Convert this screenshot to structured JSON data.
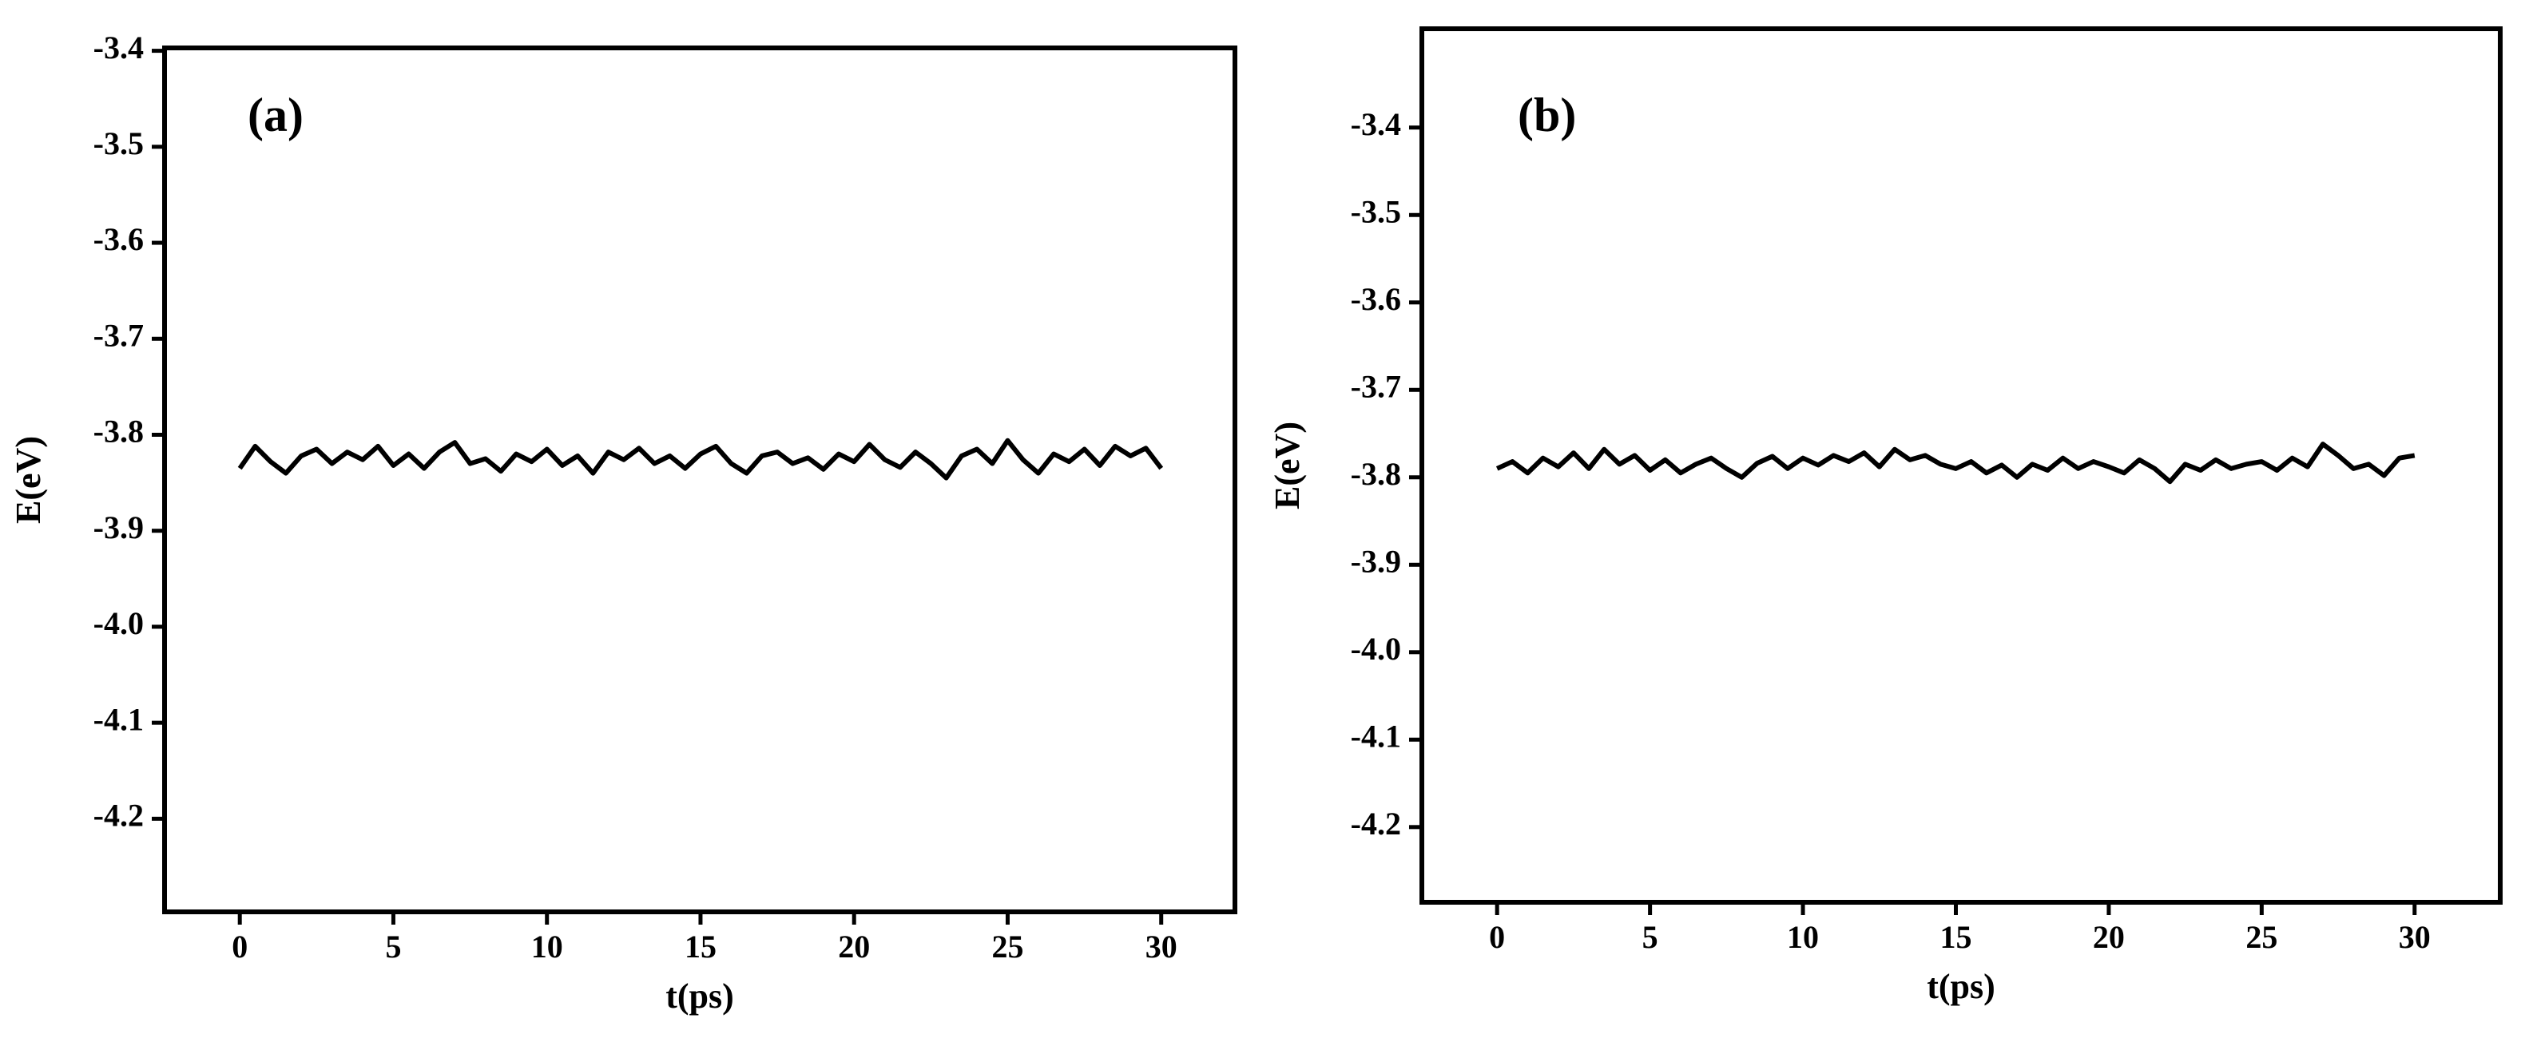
{
  "chart_data": [
    {
      "type": "line",
      "annotation": "(a)",
      "x_label": "t(ps)",
      "y_label": "E(eV)",
      "xlim": [
        -2.45,
        32.4
      ],
      "ylim": [
        -4.297,
        -3.397
      ],
      "xticks": [
        0,
        5,
        10,
        15,
        20,
        25,
        30
      ],
      "yticks": [
        -3.4,
        -3.5,
        -3.6,
        -3.7,
        -3.8,
        -3.9,
        {
          "value": -4.0,
          "label": "-4.0"
        },
        -4.1,
        -4.2
      ],
      "x": [
        0,
        0.5,
        1,
        1.5,
        2,
        2.5,
        3,
        3.5,
        4,
        4.5,
        5,
        5.5,
        6,
        6.5,
        7,
        7.5,
        8,
        8.5,
        9,
        9.5,
        10,
        10.5,
        11,
        11.5,
        12,
        12.5,
        13,
        13.5,
        14,
        14.5,
        15,
        15.5,
        16,
        16.5,
        17,
        17.5,
        18,
        18.5,
        19,
        19.5,
        20,
        20.5,
        21,
        21.5,
        22,
        22.5,
        23,
        23.5,
        24,
        24.5,
        25,
        25.5,
        26,
        26.5,
        27,
        27.5,
        28,
        28.5,
        29,
        29.5,
        30
      ],
      "series": [
        {
          "color": "#000000",
          "values": [
            -3.835,
            -3.812,
            -3.828,
            -3.84,
            -3.822,
            -3.815,
            -3.83,
            -3.818,
            -3.826,
            -3.812,
            -3.832,
            -3.82,
            -3.835,
            -3.818,
            -3.808,
            -3.83,
            -3.825,
            -3.838,
            -3.82,
            -3.828,
            -3.815,
            -3.832,
            -3.822,
            -3.84,
            -3.818,
            -3.826,
            -3.814,
            -3.83,
            -3.822,
            -3.835,
            -3.82,
            -3.812,
            -3.83,
            -3.84,
            -3.822,
            -3.818,
            -3.83,
            -3.824,
            -3.836,
            -3.82,
            -3.828,
            -3.81,
            -3.826,
            -3.834,
            -3.818,
            -3.83,
            -3.845,
            -3.822,
            -3.815,
            -3.83,
            -3.806,
            -3.826,
            -3.84,
            -3.82,
            -3.828,
            -3.815,
            -3.832,
            -3.812,
            -3.822,
            -3.814,
            -3.835
          ]
        }
      ]
    },
    {
      "type": "line",
      "annotation": "(b)",
      "x_label": "t(ps)",
      "y_label": "E(eV)",
      "xlim": [
        -2.46,
        32.8
      ],
      "ylim": [
        -4.286,
        -3.287
      ],
      "xticks": [
        0,
        5,
        10,
        15,
        20,
        25,
        30
      ],
      "yticks": [
        -3.4,
        -3.5,
        -3.6,
        -3.7,
        -3.8,
        -3.9,
        {
          "value": -4.0,
          "label": "-4.0"
        },
        -4.1,
        -4.2
      ],
      "x": [
        0,
        0.5,
        1,
        1.5,
        2,
        2.5,
        3,
        3.5,
        4,
        4.5,
        5,
        5.5,
        6,
        6.5,
        7,
        7.5,
        8,
        8.5,
        9,
        9.5,
        10,
        10.5,
        11,
        11.5,
        12,
        12.5,
        13,
        13.5,
        14,
        14.5,
        15,
        15.5,
        16,
        16.5,
        17,
        17.5,
        18,
        18.5,
        19,
        19.5,
        20,
        20.5,
        21,
        21.5,
        22,
        22.5,
        23,
        23.5,
        24,
        24.5,
        25,
        25.5,
        26,
        26.5,
        27,
        27.5,
        28,
        28.5,
        29,
        29.5,
        30
      ],
      "series": [
        {
          "color": "#000000",
          "values": [
            -3.79,
            -3.782,
            -3.795,
            -3.778,
            -3.788,
            -3.772,
            -3.79,
            -3.768,
            -3.785,
            -3.775,
            -3.792,
            -3.78,
            -3.795,
            -3.785,
            -3.778,
            -3.79,
            -3.8,
            -3.784,
            -3.776,
            -3.79,
            -3.778,
            -3.786,
            -3.775,
            -3.782,
            -3.772,
            -3.788,
            -3.768,
            -3.78,
            -3.775,
            -3.785,
            -3.79,
            -3.782,
            -3.795,
            -3.786,
            -3.8,
            -3.785,
            -3.792,
            -3.778,
            -3.79,
            -3.782,
            -3.788,
            -3.795,
            -3.78,
            -3.79,
            -3.805,
            -3.785,
            -3.792,
            -3.78,
            -3.79,
            -3.785,
            -3.782,
            -3.792,
            -3.778,
            -3.788,
            -3.762,
            -3.775,
            -3.79,
            -3.785,
            -3.798,
            -3.778,
            -3.775
          ]
        }
      ]
    }
  ]
}
